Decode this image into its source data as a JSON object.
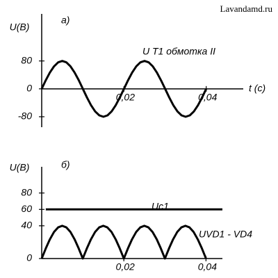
{
  "watermark": "Lavandamd.ru",
  "chart_data": [
    {
      "type": "line",
      "panel_label": "а)",
      "y_label": "U(В)",
      "x_label": "t (c)",
      "x": [
        0,
        0.001,
        0.002,
        0.003,
        0.004,
        0.005,
        0.006,
        0.007,
        0.008,
        0.009,
        0.01,
        0.011,
        0.012,
        0.013,
        0.014,
        0.015,
        0.016,
        0.017,
        0.018,
        0.019,
        0.02,
        0.021,
        0.022,
        0.023,
        0.024,
        0.025,
        0.026,
        0.027,
        0.028,
        0.029,
        0.03,
        0.031,
        0.032,
        0.033,
        0.034,
        0.035,
        0.036,
        0.037,
        0.038,
        0.039,
        0.04
      ],
      "xlim": [
        0,
        0.049
      ],
      "ylim": [
        -110,
        215
      ],
      "xticks": [
        {
          "value": 0.02,
          "label": "0,02"
        },
        {
          "value": 0.04,
          "label": "0,04"
        }
      ],
      "yticks": [
        80,
        0,
        -80
      ],
      "series": [
        {
          "name": "U T1 обмотка II",
          "color": "#000000",
          "values": [
            0,
            24.7,
            47.0,
            64.7,
            76.1,
            80,
            76.1,
            64.7,
            47.0,
            24.7,
            0,
            -24.7,
            -47.0,
            -64.7,
            -76.1,
            -80,
            -76.1,
            -64.7,
            -47.0,
            -24.7,
            0,
            24.7,
            47.0,
            64.7,
            76.1,
            80,
            76.1,
            64.7,
            47.0,
            24.7,
            0,
            -24.7,
            -47.0,
            -64.7,
            -76.1,
            -80,
            -76.1,
            -64.7,
            -47.0,
            -24.7,
            0
          ]
        }
      ]
    },
    {
      "type": "line",
      "panel_label": "б)",
      "y_label": "U(В)",
      "x": [
        0,
        0.001,
        0.002,
        0.003,
        0.004,
        0.005,
        0.006,
        0.007,
        0.008,
        0.009,
        0.01,
        0.011,
        0.012,
        0.013,
        0.014,
        0.015,
        0.016,
        0.017,
        0.018,
        0.019,
        0.02,
        0.021,
        0.022,
        0.023,
        0.024,
        0.025,
        0.026,
        0.027,
        0.028,
        0.029,
        0.03,
        0.031,
        0.032,
        0.033,
        0.034,
        0.035,
        0.036,
        0.037,
        0.038,
        0.039,
        0.04
      ],
      "xlim": [
        0,
        0.044
      ],
      "ylim": [
        0,
        112
      ],
      "xticks": [
        {
          "value": 0.02,
          "label": "0,02"
        },
        {
          "value": 0.04,
          "label": "0,04"
        }
      ],
      "yticks": [
        80,
        60,
        40,
        0
      ],
      "series": [
        {
          "name": "Uc1",
          "color": "#000000",
          "x": [
            0.001,
            0.044
          ],
          "values": [
            60,
            60
          ]
        },
        {
          "name": "UVD1 - VD4",
          "color": "#000000",
          "values": [
            0,
            12.4,
            23.5,
            32.4,
            38.0,
            40,
            38.0,
            32.4,
            23.5,
            12.4,
            0,
            12.4,
            23.5,
            32.4,
            38.0,
            40,
            38.0,
            32.4,
            23.5,
            12.4,
            0,
            12.4,
            23.5,
            32.4,
            38.0,
            40,
            38.0,
            32.4,
            23.5,
            12.4,
            0,
            12.4,
            23.5,
            32.4,
            38.0,
            40,
            38.0,
            32.4,
            23.5,
            12.4,
            0
          ]
        }
      ]
    }
  ]
}
